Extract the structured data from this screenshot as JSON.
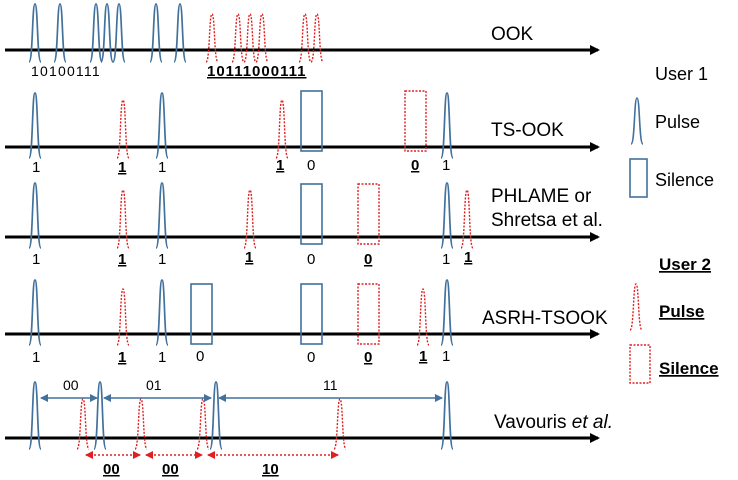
{
  "rows": [
    {
      "name": "OOK",
      "bits_user1": "10100111",
      "bits_user2": "10111000111"
    },
    {
      "name": "TS-OOK"
    },
    {
      "name_line1": "PHLAME or",
      "name_line2": "Shretsa et al."
    },
    {
      "name": "ASRH-TSOOK"
    },
    {
      "name_plain": "Vavouris ",
      "name_italic": "et al."
    }
  ],
  "bit_labels": {
    "one": "1",
    "zero": "0"
  },
  "vavouris_symbols_user1": [
    "00",
    "01",
    "11"
  ],
  "vavouris_symbols_user2": [
    "00",
    "00",
    "10"
  ],
  "legend": {
    "user1_title": "User 1",
    "user1_pulse": "Pulse",
    "user1_silence": "Silence",
    "user2_title": "User 2",
    "user2_pulse": "Pulse",
    "user2_silence": "Silence"
  },
  "colors": {
    "user1": "#41719c",
    "user2": "#e02020",
    "axis": "#000000"
  }
}
